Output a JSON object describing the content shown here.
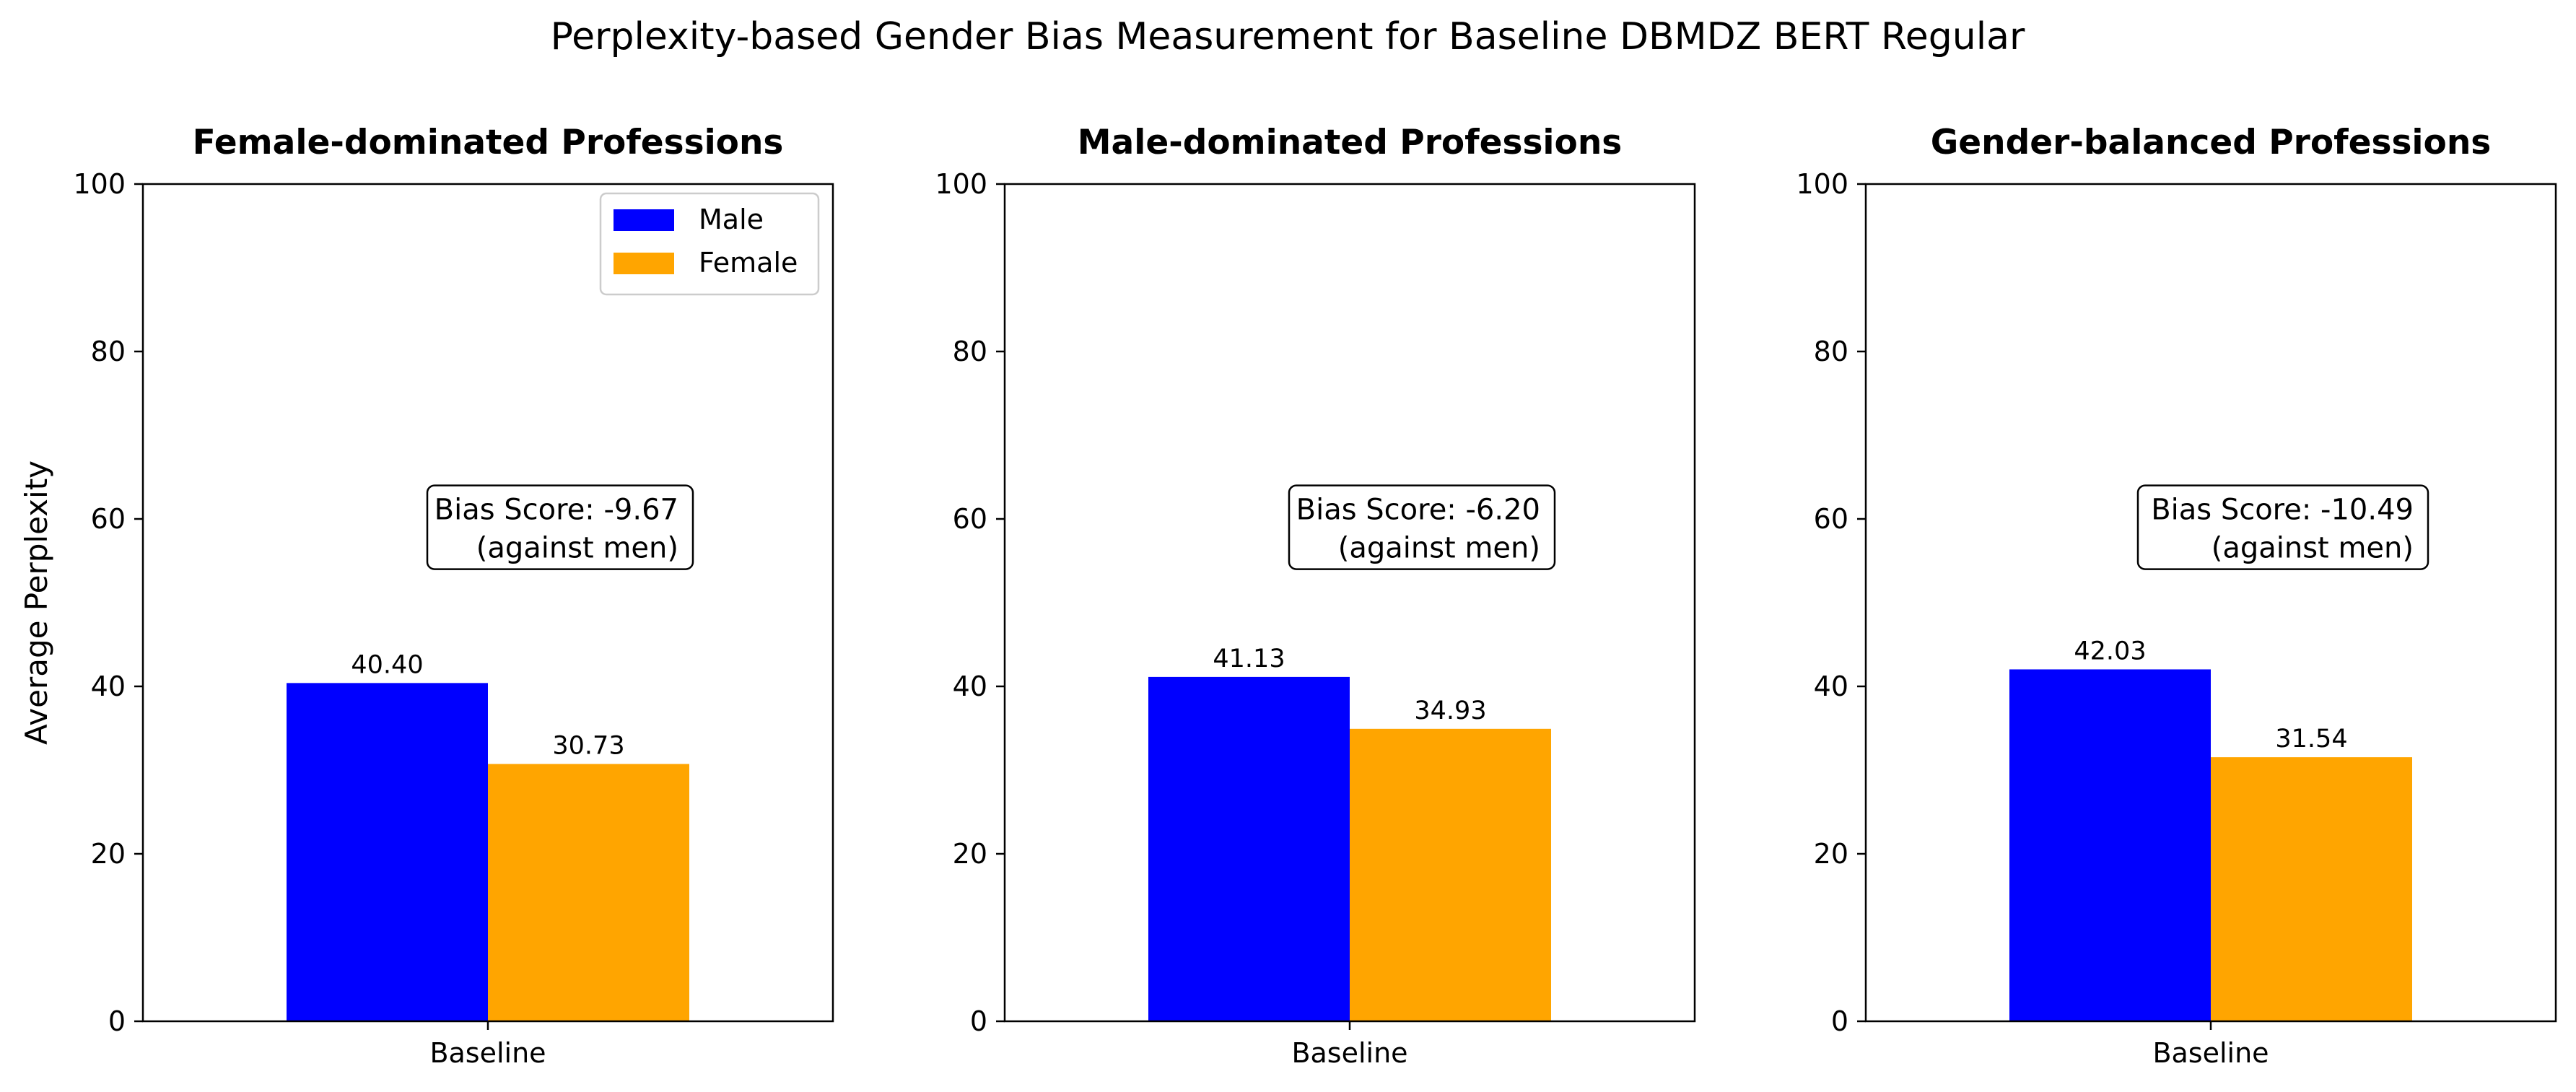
{
  "figure_title": "Perplexity-based Gender Bias Measurement for Baseline DBMDZ BERT Regular",
  "colors": {
    "male": "#0000ff",
    "female": "#ffa500"
  },
  "legend": {
    "placement": "upper-right of first panel",
    "entries": [
      "Male",
      "Female"
    ]
  },
  "chart_data": [
    {
      "type": "bar",
      "title": "Female-dominated Professions",
      "ylabel": "Average Perplexity",
      "xlabel": "",
      "ylim": [
        0,
        100
      ],
      "yticks": [
        "0",
        "20",
        "40",
        "60",
        "80",
        "100"
      ],
      "categories": [
        "Baseline"
      ],
      "series": [
        {
          "name": "Male",
          "values": [
            40.4
          ],
          "labels": [
            "40.40"
          ]
        },
        {
          "name": "Female",
          "values": [
            30.73
          ],
          "labels": [
            "30.73"
          ]
        }
      ],
      "annotation": {
        "line1": "Bias Score: -9.67",
        "line2": "(against men)",
        "y": 59
      },
      "grid": false
    },
    {
      "type": "bar",
      "title": "Male-dominated Professions",
      "ylabel": "",
      "xlabel": "",
      "ylim": [
        0,
        100
      ],
      "yticks": [
        "0",
        "20",
        "40",
        "60",
        "80",
        "100"
      ],
      "categories": [
        "Baseline"
      ],
      "series": [
        {
          "name": "Male",
          "values": [
            41.13
          ],
          "labels": [
            "41.13"
          ]
        },
        {
          "name": "Female",
          "values": [
            34.93
          ],
          "labels": [
            "34.93"
          ]
        }
      ],
      "annotation": {
        "line1": "Bias Score: -6.20",
        "line2": "(against men)",
        "y": 59
      },
      "grid": false
    },
    {
      "type": "bar",
      "title": "Gender-balanced Professions",
      "ylabel": "",
      "xlabel": "",
      "ylim": [
        0,
        100
      ],
      "yticks": [
        "0",
        "20",
        "40",
        "60",
        "80",
        "100"
      ],
      "categories": [
        "Baseline"
      ],
      "series": [
        {
          "name": "Male",
          "values": [
            42.03
          ],
          "labels": [
            "42.03"
          ]
        },
        {
          "name": "Female",
          "values": [
            31.54
          ],
          "labels": [
            "31.54"
          ]
        }
      ],
      "annotation": {
        "line1": "Bias Score: -10.49",
        "line2": "(against men)",
        "y": 59
      },
      "grid": false
    }
  ]
}
